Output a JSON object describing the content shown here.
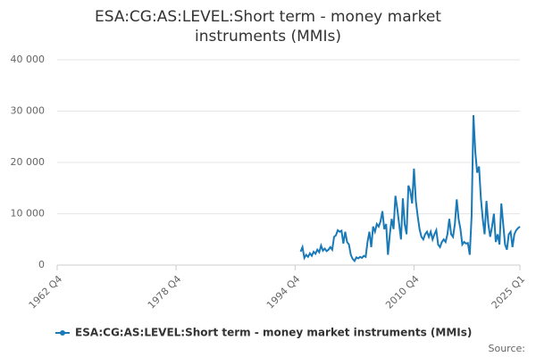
{
  "chart_data": {
    "type": "line",
    "title": "ESA:CG:AS:LEVEL:Short term - money market instruments (MMIs)",
    "source": "Source:",
    "x": [
      1995.5,
      1995.75,
      1996,
      1996.25,
      1996.5,
      1996.75,
      1997,
      1997.25,
      1997.5,
      1997.75,
      1998,
      1998.25,
      1998.5,
      1998.75,
      1999,
      1999.25,
      1999.5,
      1999.75,
      2000,
      2000.25,
      2000.5,
      2000.75,
      2001,
      2001.25,
      2001.5,
      2001.75,
      2002,
      2002.25,
      2002.5,
      2002.75,
      2003,
      2003.25,
      2003.5,
      2003.75,
      2004,
      2004.25,
      2004.5,
      2004.75,
      2005,
      2005.25,
      2005.5,
      2005.75,
      2006,
      2006.25,
      2006.5,
      2006.75,
      2007,
      2007.25,
      2007.5,
      2007.75,
      2008,
      2008.25,
      2008.5,
      2008.75,
      2009,
      2009.25,
      2009.5,
      2009.75,
      2010,
      2010.25,
      2010.5,
      2010.75,
      2011,
      2011.25,
      2011.5,
      2011.75,
      2012,
      2012.25,
      2012.5,
      2012.75,
      2013,
      2013.25,
      2013.5,
      2013.75,
      2014,
      2014.25,
      2014.5,
      2014.75,
      2015,
      2015.25,
      2015.5,
      2015.75,
      2016,
      2016.25,
      2016.5,
      2016.75,
      2017,
      2017.25,
      2017.5,
      2017.75,
      2018,
      2018.25,
      2018.5,
      2018.75,
      2019,
      2019.25,
      2019.5,
      2019.75,
      2020,
      2020.25,
      2020.5,
      2020.75,
      2021,
      2021.25,
      2021.5,
      2021.75,
      2022,
      2022.25,
      2022.5,
      2022.75,
      2023,
      2023.25,
      2023.5,
      2023.75,
      2024,
      2024.25,
      2024.5,
      2024.75,
      2025
    ],
    "series": [
      {
        "name": "ESA:CG:AS:LEVEL:Short term - money market instruments (MMIs)",
        "color": "#1a7ab8",
        "values": [
          2600,
          3500,
          1400,
          2000,
          1600,
          2300,
          1800,
          2600,
          2200,
          3000,
          2500,
          3800,
          2800,
          3200,
          2700,
          3000,
          3500,
          3000,
          5500,
          5800,
          6800,
          6500,
          6700,
          4200,
          6500,
          4500,
          4000,
          2000,
          1200,
          800,
          1500,
          1300,
          1600,
          1400,
          1800,
          1600,
          4500,
          6500,
          3500,
          7500,
          6500,
          8000,
          7500,
          8500,
          10500,
          7000,
          8000,
          2000,
          6000,
          9000,
          7000,
          13500,
          11000,
          8000,
          5000,
          13000,
          8000,
          6000,
          15500,
          14500,
          12000,
          18800,
          12500,
          9500,
          7000,
          5500,
          5000,
          6000,
          6500,
          5500,
          6500,
          5000,
          6000,
          6800,
          4000,
          3500,
          4500,
          5000,
          4500,
          6000,
          9000,
          6000,
          5500,
          8000,
          12800,
          9000,
          7000,
          4000,
          4500,
          4200,
          4300,
          2000,
          9500,
          29200,
          22000,
          18000,
          19200,
          13000,
          9000,
          6000,
          12500,
          8000,
          5500,
          7500,
          10000,
          4500,
          6000,
          4000,
          12000,
          8000,
          4000,
          3000,
          6000,
          6500,
          3500,
          6000,
          6800,
          7200,
          7500
        ]
      }
    ],
    "xlim": [
      1962.75,
      2025
    ],
    "xticks": [
      {
        "value": 1962.75,
        "label": "1962 Q4"
      },
      {
        "value": 1978.75,
        "label": "1978 Q4"
      },
      {
        "value": 1994.75,
        "label": "1994 Q4"
      },
      {
        "value": 2010.75,
        "label": "2010 Q4"
      },
      {
        "value": 2025,
        "label": "2025 Q1"
      }
    ],
    "ylim": [
      0,
      40000
    ],
    "yticks": [
      0,
      {
        "value": 10000,
        "label": "10 000"
      },
      {
        "value": 20000,
        "label": "20 000"
      },
      {
        "value": 30000,
        "label": "30 000"
      },
      {
        "value": 40000,
        "label": "40 000"
      }
    ],
    "grid": true
  }
}
